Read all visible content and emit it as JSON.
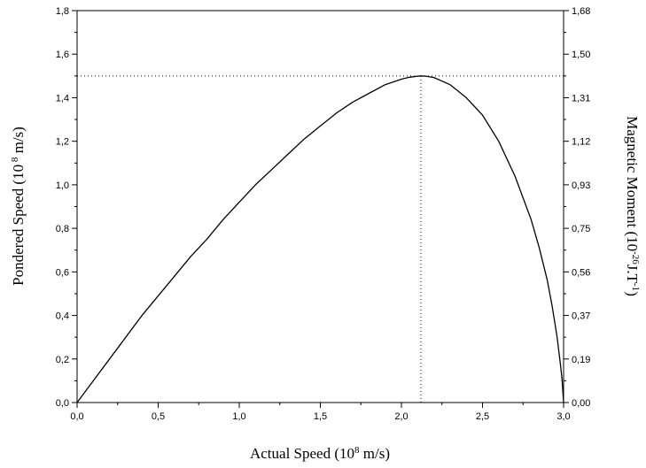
{
  "chart_data": {
    "type": "line",
    "title": "",
    "xlabel": {
      "text": "Actual Speed (10",
      "sup": "8",
      "tail": " m/s)"
    },
    "ylabel_left": {
      "text": "Pondered Speed (10",
      "sup": " 8",
      "tail": " m/s)"
    },
    "ylabel_right": {
      "text": "Magnetic Moment (10",
      "sup": "-26",
      "mid": "J.T",
      "sup2": "-1",
      "tail": ")"
    },
    "xlim": [
      0,
      3.0
    ],
    "ylim_left": [
      0,
      1.8
    ],
    "ylim_right": [
      0,
      1.68
    ],
    "x_ticks": [
      "0,0",
      "0,5",
      "1,0",
      "1,5",
      "2,0",
      "2,5",
      "3,0"
    ],
    "x_tick_values": [
      0,
      0.5,
      1.0,
      1.5,
      2.0,
      2.5,
      3.0
    ],
    "y_left_ticks": [
      "0,0",
      "0,2",
      "0,4",
      "0,6",
      "0,8",
      "1,0",
      "1,2",
      "1,4",
      "1,6",
      "1,8"
    ],
    "y_left_tick_values": [
      0,
      0.2,
      0.4,
      0.6,
      0.8,
      1.0,
      1.2,
      1.4,
      1.6,
      1.8
    ],
    "y_right_ticks": [
      "0,00",
      "0,19",
      "0,37",
      "0,56",
      "0,75",
      "0,93",
      "1,12",
      "1,31",
      "1,50",
      "1,68"
    ],
    "grid": false,
    "series": [
      {
        "x": [
          0,
          0.1,
          0.2,
          0.3,
          0.4,
          0.5,
          0.6,
          0.7,
          0.8,
          0.9,
          1.0,
          1.1,
          1.2,
          1.3,
          1.4,
          1.5,
          1.6,
          1.7,
          1.8,
          1.9,
          2.0,
          2.05,
          2.1,
          2.12,
          2.15,
          2.2,
          2.3,
          2.4,
          2.5,
          2.6,
          2.7,
          2.8,
          2.85,
          2.9,
          2.93,
          2.96,
          2.98,
          2.99,
          3.0
        ],
        "y": [
          0,
          0.1,
          0.2,
          0.3,
          0.4,
          0.49,
          0.58,
          0.67,
          0.75,
          0.84,
          0.92,
          1.0,
          1.07,
          1.14,
          1.21,
          1.27,
          1.33,
          1.38,
          1.42,
          1.46,
          1.485,
          1.494,
          1.499,
          1.5,
          1.499,
          1.493,
          1.46,
          1.4,
          1.32,
          1.2,
          1.04,
          0.84,
          0.71,
          0.56,
          0.44,
          0.3,
          0.18,
          0.11,
          0.0
        ]
      }
    ],
    "reference_lines": {
      "horizontal_y": 1.5,
      "vertical_x": 2.12
    }
  }
}
